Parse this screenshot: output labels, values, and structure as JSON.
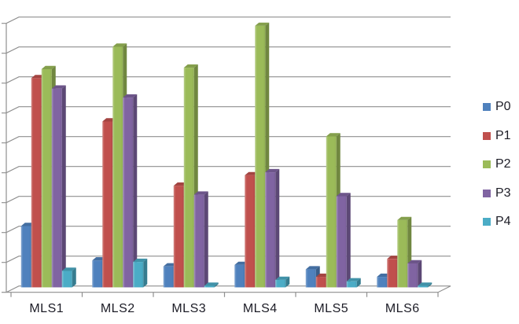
{
  "chart_data": {
    "type": "bar",
    "subtype": "3d-clustered-column",
    "title": "",
    "categories": [
      "MLS1",
      "MLS2",
      "MLS3",
      "MLS4",
      "MLS5",
      "MLS6"
    ],
    "series": [
      {
        "name": "P0",
        "color": "#4F81BD",
        "values": [
          2.05,
          0.9,
          0.7,
          0.75,
          0.6,
          0.35
        ]
      },
      {
        "name": "P1",
        "color": "#C0504D",
        "values": [
          7.0,
          5.55,
          3.4,
          3.75,
          0.35,
          0.95
        ]
      },
      {
        "name": "P2",
        "color": "#9BBB59",
        "values": [
          7.3,
          8.05,
          7.35,
          8.75,
          5.05,
          2.25
        ]
      },
      {
        "name": "P3",
        "color": "#8064A2",
        "values": [
          6.65,
          6.35,
          3.1,
          3.85,
          3.05,
          0.8
        ]
      },
      {
        "name": "P4",
        "color": "#4BACC6",
        "values": [
          0.55,
          0.85,
          0.05,
          0.25,
          0.2,
          0.05
        ]
      }
    ],
    "value_axis": {
      "min": 0,
      "max": 9,
      "tick_interval": 1,
      "labels_visible": false
    },
    "grid": true,
    "legend_position": "right",
    "xlabel": "",
    "ylabel": ""
  },
  "colors": {
    "gridline": "#8f8f8f",
    "axis": "#8f8f8f",
    "floor_fill": "#fdfdfd",
    "text": "#1c1c26",
    "background": "#ffffff"
  }
}
